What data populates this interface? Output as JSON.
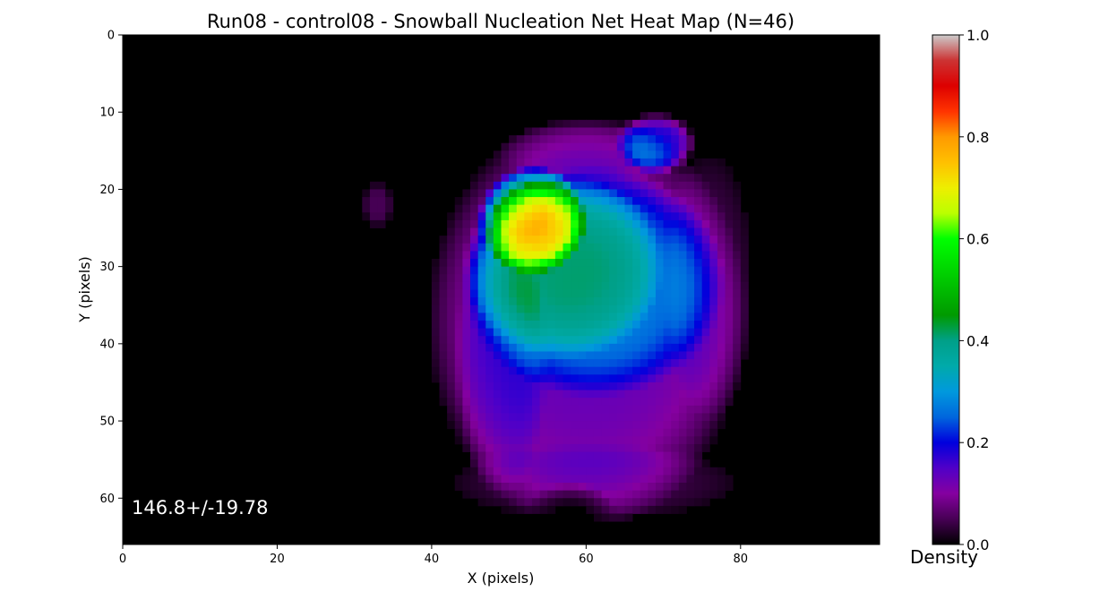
{
  "chart_data": {
    "type": "heatmap",
    "title": "Run08 - control08 - Snowball Nucleation Net Heat Map (N=46)",
    "xlabel": "X (pixels)",
    "ylabel": "Y (pixels)",
    "xlim": [
      0,
      98
    ],
    "ylim": [
      66,
      0
    ],
    "x_ticks": [
      "0",
      "20",
      "40",
      "60",
      "80"
    ],
    "y_ticks": [
      "0",
      "10",
      "20",
      "30",
      "40",
      "50",
      "60"
    ],
    "annotation": "146.8+/-19.78",
    "colorbar": {
      "label": "Density",
      "range": [
        0,
        1
      ],
      "ticks": [
        "0.0",
        "0.2",
        "0.4",
        "0.6",
        "0.8",
        "1.0"
      ],
      "colormap": "nipy_spectral",
      "stops": [
        [
          0.0,
          "#000000"
        ],
        [
          0.05,
          "#470055"
        ],
        [
          0.1,
          "#8500a0"
        ],
        [
          0.15,
          "#5000c8"
        ],
        [
          0.2,
          "#0000dd"
        ],
        [
          0.25,
          "#0066dd"
        ],
        [
          0.3,
          "#0099dd"
        ],
        [
          0.35,
          "#00aaaa"
        ],
        [
          0.4,
          "#00a088"
        ],
        [
          0.45,
          "#009a00"
        ],
        [
          0.5,
          "#00bb00"
        ],
        [
          0.55,
          "#00dd00"
        ],
        [
          0.6,
          "#00ff00"
        ],
        [
          0.65,
          "#bbff00"
        ],
        [
          0.7,
          "#eeee00"
        ],
        [
          0.75,
          "#ffc000"
        ],
        [
          0.8,
          "#ff9900"
        ],
        [
          0.85,
          "#ff3300"
        ],
        [
          0.9,
          "#dd0000"
        ],
        [
          0.95,
          "#cc3333"
        ],
        [
          1.0,
          "#cccccc"
        ]
      ]
    },
    "density_regions": [
      {
        "cx": 60,
        "cy": 37,
        "rx": 21,
        "ry": 27,
        "peak": 0.13
      },
      {
        "cx": 49,
        "cy": 42,
        "rx": 6,
        "ry": 18,
        "peak": 0.05
      },
      {
        "cx": 76,
        "cy": 32,
        "rx": 6,
        "ry": 18,
        "peak": 0.04
      },
      {
        "cx": 60,
        "cy": 15,
        "rx": 12,
        "ry": 4,
        "peak": 0.04
      },
      {
        "cx": 61,
        "cy": 58,
        "rx": 20,
        "ry": 5,
        "peak": 0.04
      },
      {
        "cx": 61,
        "cy": 32,
        "rx": 17,
        "ry": 15,
        "peak": 0.15
      },
      {
        "cx": 57,
        "cy": 30,
        "rx": 13,
        "ry": 12,
        "peak": 0.13
      },
      {
        "cx": 53,
        "cy": 24,
        "rx": 7,
        "ry": 7,
        "peak": 0.36
      },
      {
        "cx": 52,
        "cy": 23,
        "rx": 4,
        "ry": 4,
        "peak": 0.05
      },
      {
        "cx": 69,
        "cy": 14,
        "rx": 5,
        "ry": 4,
        "peak": 0.18
      },
      {
        "cx": 33,
        "cy": 22,
        "rx": 2,
        "ry": 3,
        "peak": 0.05
      },
      {
        "cx": 67,
        "cy": 7,
        "rx": 2,
        "ry": 1,
        "peak": 0.04
      }
    ],
    "cold_spots": [
      {
        "cx": 58,
        "cy": 62,
        "rx": 6,
        "ry": 4,
        "factor": 0.08
      }
    ],
    "edge_mask": {
      "top": 12,
      "bottom": 64,
      "left_top": 44,
      "left_mid": 36,
      "right_top": 75,
      "right_mid": 86
    }
  }
}
